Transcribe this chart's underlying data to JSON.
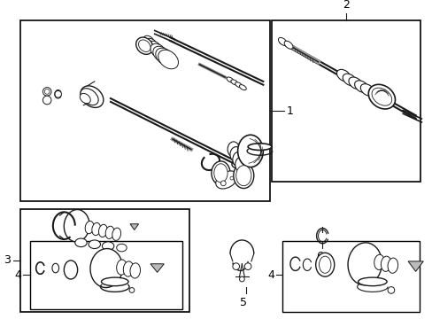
{
  "background_color": "#ffffff",
  "line_color": "#1a1a1a",
  "text_color": "#000000",
  "fig_width": 4.89,
  "fig_height": 3.6,
  "dpi": 100,
  "gray": "#888888",
  "light_gray": "#cccccc"
}
